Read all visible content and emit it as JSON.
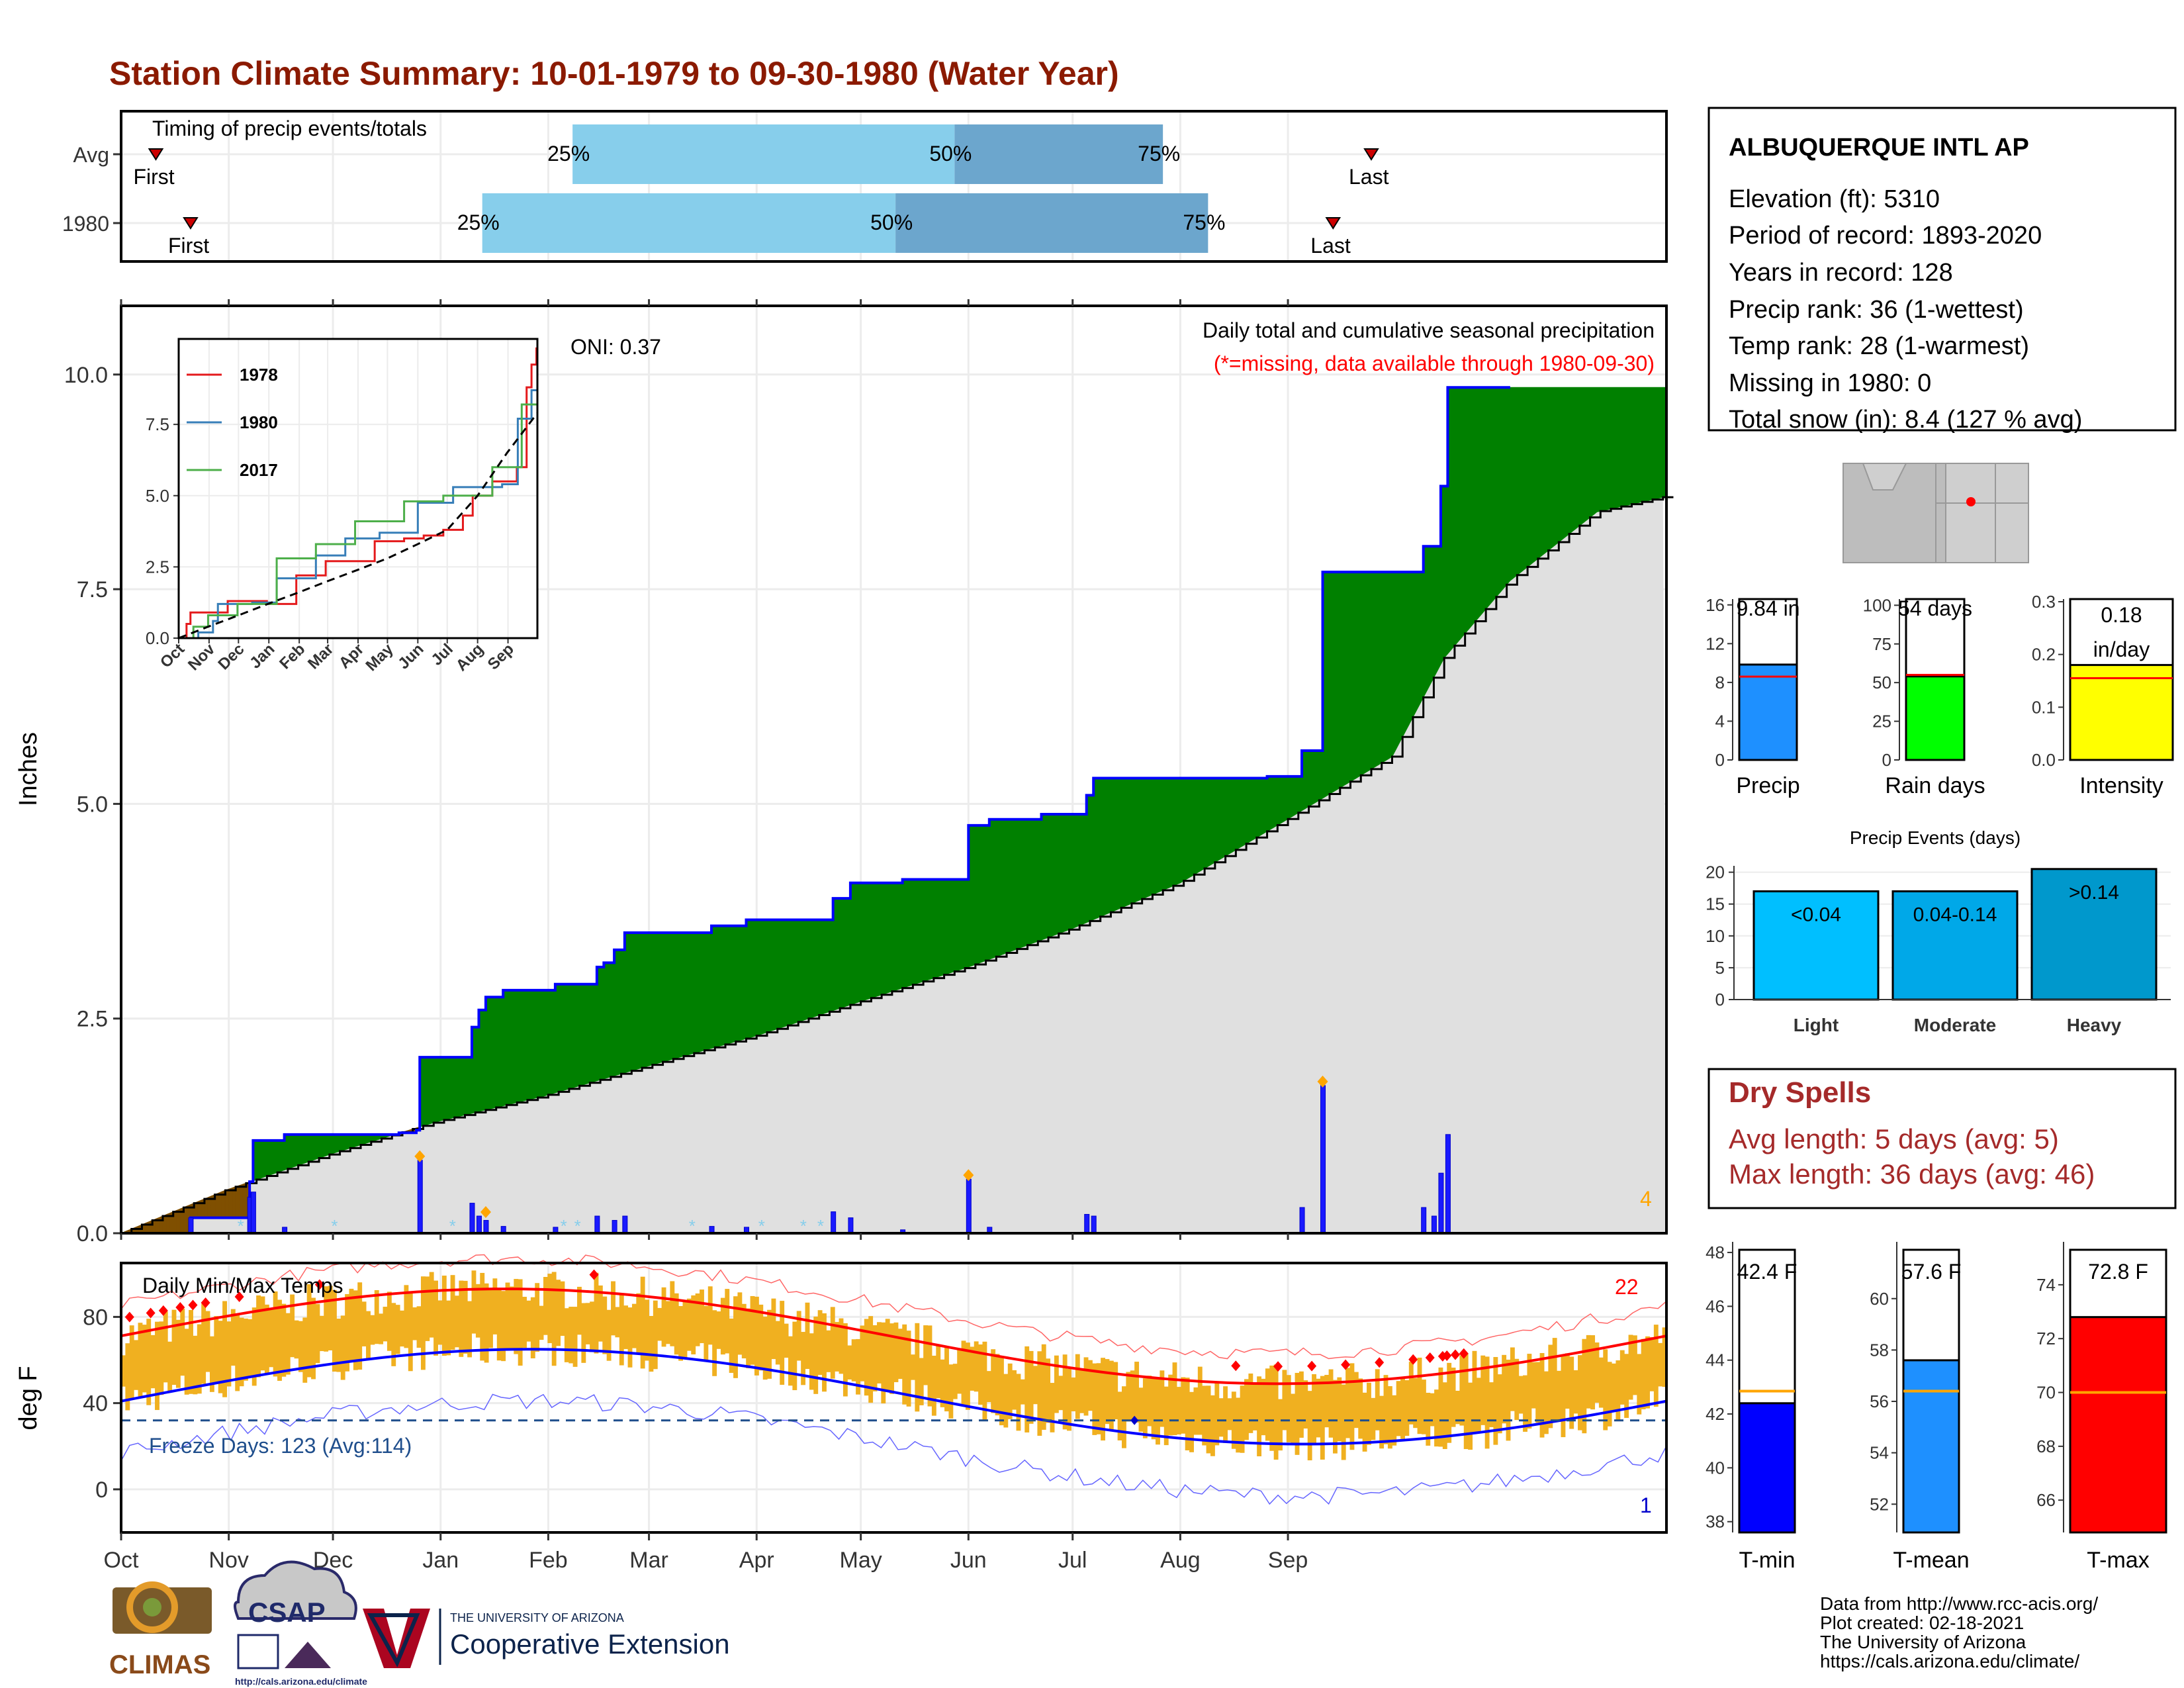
{
  "title": "Station Climate Summary: 10-01-1979 to 09-30-1980 (Water Year)",
  "months": [
    "Oct",
    "Nov",
    "Dec",
    "Jan",
    "Feb",
    "Mar",
    "Apr",
    "May",
    "Jun",
    "Jul",
    "Aug",
    "Sep"
  ],
  "timing": {
    "label": "Timing of precip events/totals",
    "rows": [
      {
        "name": "Avg",
        "first_label": "First",
        "last_label": "Last",
        "first_doy": 10,
        "last_doy": 360,
        "p25_doy": 130,
        "p50_doy": 240,
        "p75_doy": 300,
        "p25_label": "25%",
        "p50_label": "50%",
        "p75_label": "75%"
      },
      {
        "name": "1980",
        "first_label": "First",
        "last_label": "Last",
        "first_doy": 20,
        "last_doy": 349,
        "p25_doy": 104,
        "p50_doy": 223,
        "p75_doy": 313,
        "p25_label": "25%",
        "p50_label": "50%",
        "p75_label": "75%"
      }
    ]
  },
  "chart_data": [
    {
      "type": "area",
      "name": "cumulative-precip",
      "title": "Daily total and cumulative seasonal precipitation",
      "subtitle": "(*=missing, data available through 1980-09-30)",
      "ylabel": "Inches",
      "ylim": [
        0,
        10.8
      ],
      "yticks": [
        "0.0",
        "2.5",
        "5.0",
        "7.5",
        "10.0"
      ],
      "ytick_values": [
        0,
        2.5,
        5.0,
        7.5,
        10.0
      ],
      "oni": "ONI: 0.37",
      "corner_count": "4",
      "cumulative_1980": [
        [
          0,
          0
        ],
        [
          20,
          0
        ],
        [
          20,
          0.18
        ],
        [
          37,
          0.18
        ],
        [
          37,
          0.6
        ],
        [
          38,
          0.6
        ],
        [
          38,
          1.08
        ],
        [
          47,
          1.08
        ],
        [
          47,
          1.15
        ],
        [
          80,
          1.15
        ],
        [
          80,
          1.17
        ],
        [
          85,
          1.17
        ],
        [
          85,
          1.2
        ],
        [
          86,
          1.2
        ],
        [
          86,
          2.05
        ],
        [
          101,
          2.05
        ],
        [
          101,
          2.4
        ],
        [
          103,
          2.4
        ],
        [
          103,
          2.6
        ],
        [
          105,
          2.6
        ],
        [
          105,
          2.75
        ],
        [
          110,
          2.75
        ],
        [
          110,
          2.83
        ],
        [
          125,
          2.83
        ],
        [
          125,
          2.9
        ],
        [
          137,
          2.9
        ],
        [
          137,
          3.1
        ],
        [
          139,
          3.1
        ],
        [
          139,
          3.15
        ],
        [
          142,
          3.15
        ],
        [
          142,
          3.3
        ],
        [
          145,
          3.3
        ],
        [
          145,
          3.5
        ],
        [
          170,
          3.5
        ],
        [
          170,
          3.58
        ],
        [
          180,
          3.58
        ],
        [
          180,
          3.65
        ],
        [
          205,
          3.65
        ],
        [
          205,
          3.9
        ],
        [
          210,
          3.9
        ],
        [
          210,
          4.08
        ],
        [
          225,
          4.08
        ],
        [
          225,
          4.12
        ],
        [
          244,
          4.12
        ],
        [
          244,
          4.75
        ],
        [
          250,
          4.75
        ],
        [
          250,
          4.82
        ],
        [
          265,
          4.82
        ],
        [
          265,
          4.88
        ],
        [
          278,
          4.88
        ],
        [
          278,
          5.1
        ],
        [
          280,
          5.1
        ],
        [
          280,
          5.3
        ],
        [
          330,
          5.3
        ],
        [
          330,
          5.32
        ],
        [
          340,
          5.32
        ],
        [
          340,
          5.62
        ],
        [
          346,
          5.62
        ],
        [
          346,
          7.7
        ],
        [
          375,
          7.7
        ],
        [
          375,
          8.0
        ],
        [
          380,
          8.0
        ],
        [
          380,
          8.7
        ],
        [
          382,
          8.7
        ],
        [
          382,
          9.85
        ],
        [
          400,
          9.85
        ]
      ],
      "cumulative_avg": [
        [
          0,
          0
        ],
        [
          30,
          0.5
        ],
        [
          61,
          0.93
        ],
        [
          91,
          1.3
        ],
        [
          122,
          1.6
        ],
        [
          152,
          1.95
        ],
        [
          183,
          2.3
        ],
        [
          213,
          2.7
        ],
        [
          244,
          3.1
        ],
        [
          274,
          3.55
        ],
        [
          305,
          4.08
        ],
        [
          335,
          4.8
        ],
        [
          366,
          5.55
        ],
        [
          381,
          6.7
        ],
        [
          400,
          7.6
        ],
        [
          425,
          8.4
        ],
        [
          445,
          8.58
        ]
      ],
      "daily_bars": [
        [
          20,
          0.18
        ],
        [
          37,
          0.42
        ],
        [
          38,
          0.48
        ],
        [
          47,
          0.07
        ],
        [
          86,
          0.85
        ],
        [
          101,
          0.35
        ],
        [
          103,
          0.2
        ],
        [
          105,
          0.15
        ],
        [
          110,
          0.08
        ],
        [
          125,
          0.07
        ],
        [
          137,
          0.2
        ],
        [
          142,
          0.15
        ],
        [
          145,
          0.2
        ],
        [
          170,
          0.08
        ],
        [
          180,
          0.07
        ],
        [
          205,
          0.25
        ],
        [
          210,
          0.18
        ],
        [
          225,
          0.04
        ],
        [
          244,
          0.63
        ],
        [
          250,
          0.07
        ],
        [
          278,
          0.22
        ],
        [
          280,
          0.2
        ],
        [
          340,
          0.3
        ],
        [
          346,
          1.72
        ],
        [
          375,
          0.3
        ],
        [
          378,
          0.2
        ],
        [
          380,
          0.7
        ],
        [
          382,
          1.15
        ]
      ],
      "missing_marks": [
        35,
        62,
        96,
        128,
        132,
        165,
        185,
        197,
        202
      ],
      "record_marks": [
        [
          86,
          0.85
        ],
        [
          105,
          0.2
        ],
        [
          244,
          0.63
        ],
        [
          346,
          1.72
        ]
      ]
    },
    {
      "type": "line",
      "name": "inset-cumulative",
      "ylim": [
        0,
        10.5
      ],
      "yticks": [
        "0.0",
        "2.5",
        "5.0",
        "7.5"
      ],
      "ytick_values": [
        0,
        2.5,
        5.0,
        7.5
      ],
      "xticks": [
        "Oct",
        "Nov",
        "Dec",
        "Jan",
        "Feb",
        "Mar",
        "Apr",
        "May",
        "Jun",
        "Jul",
        "Aug",
        "Sep"
      ],
      "legend": [
        {
          "name": "1978",
          "color": "#e41a1c"
        },
        {
          "name": "1980",
          "color": "#377eb8"
        },
        {
          "name": "2017",
          "color": "#4daf4a"
        }
      ],
      "series": [
        {
          "name": "1978",
          "color": "#e41a1c",
          "points": [
            [
              0,
              0
            ],
            [
              8,
              0.5
            ],
            [
              12,
              0.9
            ],
            [
              50,
              1.3
            ],
            [
              90,
              1.2
            ],
            [
              120,
              2.2
            ],
            [
              150,
              2.7
            ],
            [
              200,
              3.4
            ],
            [
              230,
              3.5
            ],
            [
              250,
              3.6
            ],
            [
              270,
              3.8
            ],
            [
              290,
              4.3
            ],
            [
              300,
              5.0
            ],
            [
              320,
              5.5
            ],
            [
              345,
              6.0
            ],
            [
              355,
              8.8
            ],
            [
              360,
              9.6
            ],
            [
              365,
              10.2
            ]
          ]
        },
        {
          "name": "1980",
          "color": "#377eb8",
          "points": [
            [
              0,
              0
            ],
            [
              20,
              0.2
            ],
            [
              35,
              0.6
            ],
            [
              40,
              1.2
            ],
            [
              75,
              1.25
            ],
            [
              100,
              2.1
            ],
            [
              140,
              2.9
            ],
            [
              170,
              3.5
            ],
            [
              205,
              3.7
            ],
            [
              244,
              4.75
            ],
            [
              280,
              5.3
            ],
            [
              330,
              5.4
            ],
            [
              346,
              7.7
            ],
            [
              360,
              8.7
            ],
            [
              366,
              10.4
            ]
          ]
        },
        {
          "name": "2017",
          "color": "#4daf4a",
          "points": [
            [
              0,
              0
            ],
            [
              15,
              0.4
            ],
            [
              30,
              0.8
            ],
            [
              60,
              1.2
            ],
            [
              100,
              2.8
            ],
            [
              140,
              3.3
            ],
            [
              180,
              4.1
            ],
            [
              230,
              4.8
            ],
            [
              270,
              5.0
            ],
            [
              320,
              6.0
            ],
            [
              350,
              8.2
            ],
            [
              366,
              9.2
            ]
          ]
        },
        {
          "name": "avg",
          "color": "#000000",
          "dashed": true,
          "points": [
            [
              0,
              0
            ],
            [
              30,
              0.4
            ],
            [
              61,
              0.8
            ],
            [
              91,
              1.2
            ],
            [
              122,
              1.6
            ],
            [
              152,
              2.0
            ],
            [
              183,
              2.4
            ],
            [
              213,
              2.8
            ],
            [
              244,
              3.3
            ],
            [
              274,
              3.8
            ],
            [
              305,
              5.0
            ],
            [
              335,
              6.5
            ],
            [
              366,
              7.9
            ]
          ]
        }
      ]
    },
    {
      "type": "bar",
      "name": "daily-temps",
      "title": "Daily Min/Max Temps",
      "ylabel": "deg F",
      "ylim": [
        -20,
        105
      ],
      "yticks": [
        "0",
        "40",
        "80"
      ],
      "ytick_values": [
        0,
        40,
        80
      ],
      "freeze_label": "Freeze Days: 123 (Avg:114)",
      "freeze_line": 32,
      "record_high_count": "22",
      "record_low_count": "1"
    }
  ],
  "station": {
    "name": "ALBUQUERQUE INTL AP",
    "lines": [
      "Elevation (ft): 5310",
      "Period of record: 1893-2020",
      "Years in record: 128",
      "Precip rank: 36 (1-wettest)",
      "Temp rank: 28 (1-warmest)",
      "Missing in 1980: 0",
      "Total snow (in): 8.4 (127 % avg)"
    ]
  },
  "mini_bars": [
    {
      "name": "Precip",
      "label": "9.84 in",
      "value": 9.84,
      "avg": 8.6,
      "ymax": 16.6,
      "ticks": [
        "0",
        "4",
        "8",
        "12",
        "16"
      ],
      "tick_values": [
        0,
        4,
        8,
        12,
        16
      ],
      "color": "#1e90ff"
    },
    {
      "name": "Rain days",
      "label": "54 days",
      "value": 54,
      "avg": 55,
      "ymax": 104,
      "ticks": [
        "0",
        "25",
        "50",
        "75",
        "100"
      ],
      "tick_values": [
        0,
        25,
        50,
        75,
        100
      ],
      "color": "#00ff00"
    },
    {
      "name": "Intensity",
      "label": "0.18 in/day",
      "value": 0.18,
      "avg": 0.155,
      "ymax": 0.305,
      "ticks": [
        "0.0",
        "0.1",
        "0.2",
        "0.3"
      ],
      "tick_values": [
        0,
        0.1,
        0.2,
        0.3
      ],
      "color": "#ffff00"
    }
  ],
  "precip_events": {
    "title": "Precip Events (days)",
    "ymax": 21,
    "ticks": [
      "0",
      "5",
      "10",
      "15",
      "20"
    ],
    "tick_values": [
      0,
      5,
      10,
      15,
      20
    ],
    "categories": [
      "Light",
      "Moderate",
      "Heavy"
    ],
    "values": [
      17,
      17,
      20.5
    ],
    "labels": [
      "<0.04",
      "0.04-0.14",
      ">0.14"
    ],
    "colors": [
      "#00bfff",
      "#00a8e8",
      "#0098cc"
    ]
  },
  "dry_spells": {
    "title": "Dry Spells",
    "avg_line": "Avg length: 5 days (avg: 5)",
    "max_line": "Max length: 36 days (avg: 46)"
  },
  "temp_bars": [
    {
      "name": "T-min",
      "label": "42.4 F",
      "value": 42.4,
      "avg": 42.85,
      "ymin": 37.6,
      "ymax": 48.1,
      "ticks": [
        "38",
        "40",
        "42",
        "44",
        "46",
        "48"
      ],
      "tick_values": [
        38,
        40,
        42,
        44,
        46,
        48
      ],
      "color": "#0000ff"
    },
    {
      "name": "T-mean",
      "label": "57.6 F",
      "value": 57.6,
      "avg": 56.4,
      "ymin": 50.9,
      "ymax": 61.9,
      "ticks": [
        "52",
        "54",
        "56",
        "58",
        "60"
      ],
      "tick_values": [
        52,
        54,
        56,
        58,
        60
      ],
      "color": "#1e90ff"
    },
    {
      "name": "T-max",
      "label": "72.8 F",
      "value": 72.8,
      "avg": 70.0,
      "ymin": 64.8,
      "ymax": 75.3,
      "ticks": [
        "66",
        "68",
        "70",
        "72",
        "74"
      ],
      "tick_values": [
        66,
        68,
        70,
        72,
        74
      ],
      "color": "#ff0000"
    }
  ],
  "credits": [
    "Data from http://www.rcc-acis.org/",
    "Plot created: 02-18-2021",
    "The University of Arizona",
    "https://cals.arizona.edu/climate/"
  ],
  "logos": {
    "climas": "CLIMAS",
    "csap": "CSAP",
    "csap_url": "http://cals.arizona.edu/climate",
    "ua_small": "THE UNIVERSITY OF ARIZONA",
    "ua_big": "Cooperative Extension"
  },
  "colors": {
    "title": "#8b1a00",
    "above": "#008000",
    "below": "#7f4f00",
    "avg_fill": "#e0e0e0",
    "bar": "#0000ff",
    "temp_band": "#f0b020",
    "dry_title": "#a52a2a"
  }
}
